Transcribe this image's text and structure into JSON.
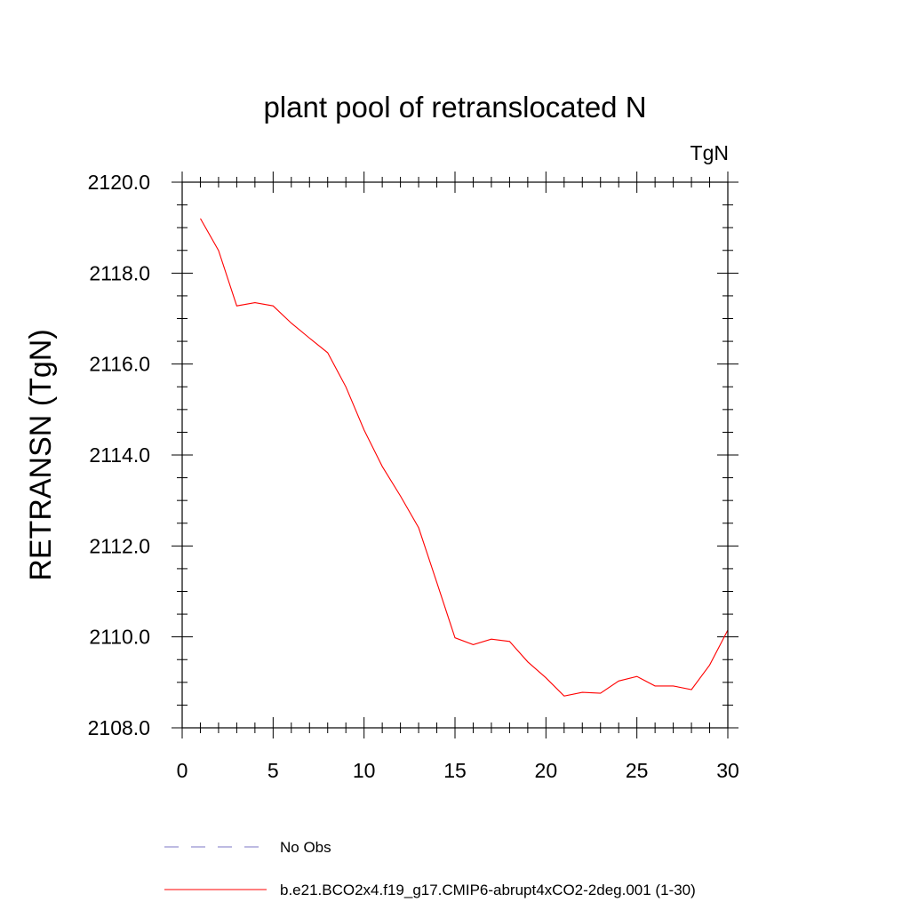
{
  "chart_data": {
    "type": "line",
    "title": "plant pool of retranslocated N",
    "units": "TgN",
    "xlabel": "",
    "ylabel": "RETRANSN  (TgN)",
    "xlim": [
      0,
      30
    ],
    "ylim": [
      2108.0,
      2120.0
    ],
    "xticks": [
      0,
      5,
      10,
      15,
      20,
      25,
      30
    ],
    "xtick_labels": [
      "0",
      "5",
      "10",
      "15",
      "20",
      "25",
      "30"
    ],
    "yticks": [
      2108.0,
      2110.0,
      2112.0,
      2114.0,
      2116.0,
      2118.0,
      2120.0
    ],
    "ytick_labels": [
      "2108.0",
      "2110.0",
      "2112.0",
      "2114.0",
      "2116.0",
      "2118.0",
      "2120.0"
    ],
    "grid": false,
    "series": [
      {
        "name": "b.e21.BCO2x4.f19_g17.CMIP6-abrupt4xCO2-2deg.001 (1-30)",
        "color": "#ff0000",
        "style": "solid",
        "x": [
          1,
          2,
          3,
          4,
          5,
          6,
          7,
          8,
          9,
          10,
          11,
          12,
          13,
          14,
          15,
          16,
          17,
          18,
          19,
          20,
          21,
          22,
          23,
          24,
          25,
          26,
          27,
          28,
          29,
          30
        ],
        "y": [
          2119.2,
          2118.5,
          2117.28,
          2117.35,
          2117.28,
          2116.9,
          2116.57,
          2116.25,
          2115.5,
          2114.55,
          2113.75,
          2113.1,
          2112.4,
          2111.2,
          2109.98,
          2109.83,
          2109.95,
          2109.9,
          2109.45,
          2109.1,
          2108.7,
          2108.78,
          2108.76,
          2109.03,
          2109.13,
          2108.92,
          2108.92,
          2108.84,
          2109.38,
          2110.15
        ]
      }
    ],
    "legend": {
      "placement": "bottom",
      "entries": [
        {
          "label": "No Obs",
          "color": "#7b76c4",
          "style": "dashed"
        },
        {
          "label": "b.e21.BCO2x4.f19_g17.CMIP6-abrupt4xCO2-2deg.001 (1-30)",
          "color": "#ff0000",
          "style": "solid"
        }
      ]
    }
  }
}
